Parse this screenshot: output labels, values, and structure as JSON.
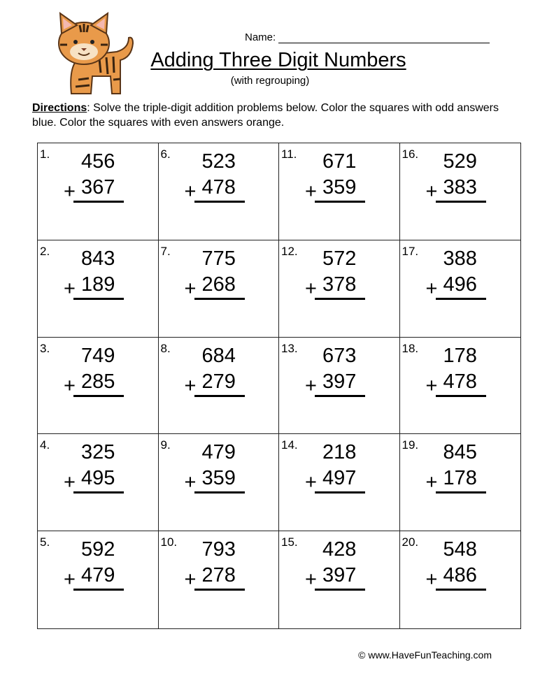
{
  "header": {
    "name_label": "Name:",
    "title": "Adding Three Digit Numbers",
    "subtitle": "(with regrouping)"
  },
  "directions": {
    "label": "Directions",
    "text": ":  Solve the triple-digit addition problems below.  Color the squares with odd answers blue.  Color the squares with even answers orange."
  },
  "problems": [
    {
      "n": "1.",
      "a": "456",
      "b": "367"
    },
    {
      "n": "2.",
      "a": "843",
      "b": "189"
    },
    {
      "n": "3.",
      "a": "749",
      "b": "285"
    },
    {
      "n": "4.",
      "a": "325",
      "b": "495"
    },
    {
      "n": "5.",
      "a": "592",
      "b": "479"
    },
    {
      "n": "6.",
      "a": "523",
      "b": "478"
    },
    {
      "n": "7.",
      "a": "775",
      "b": "268"
    },
    {
      "n": "8.",
      "a": "684",
      "b": "279"
    },
    {
      "n": "9.",
      "a": "479",
      "b": "359"
    },
    {
      "n": "10.",
      "a": "793",
      "b": "278"
    },
    {
      "n": "11.",
      "a": "671",
      "b": "359"
    },
    {
      "n": "12.",
      "a": "572",
      "b": "378"
    },
    {
      "n": "13.",
      "a": "673",
      "b": "397"
    },
    {
      "n": "14.",
      "a": "218",
      "b": "497"
    },
    {
      "n": "15.",
      "a": "428",
      "b": "397"
    },
    {
      "n": "16.",
      "a": "529",
      "b": "383"
    },
    {
      "n": "17.",
      "a": "388",
      "b": "496"
    },
    {
      "n": "18.",
      "a": "178",
      "b": "478"
    },
    {
      "n": "19.",
      "a": "845",
      "b": "178"
    },
    {
      "n": "20.",
      "a": "548",
      "b": "486"
    }
  ],
  "plus_sign": "+",
  "footer": "© www.HaveFunTeaching.com",
  "illustration": "tiger-cat-icon"
}
